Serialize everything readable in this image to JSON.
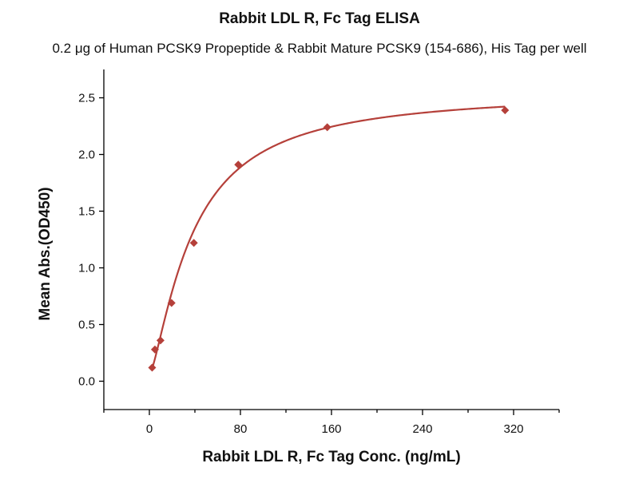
{
  "chart_data": {
    "type": "scatter",
    "title": "Rabbit LDL R, Fc Tag ELISA",
    "subtitle": "0.2 μg of Human PCSK9 Propeptide & Rabbit Mature PCSK9 (154-686), His Tag per well",
    "xlabel": "Rabbit LDL R, Fc Tag Conc. (ng/mL)",
    "ylabel": "Mean Abs.(OD450)",
    "xlim": [
      -40,
      360
    ],
    "ylim": [
      -0.25,
      2.75
    ],
    "xticks": [
      0,
      80,
      160,
      240,
      320
    ],
    "xtick_labels": [
      "0",
      "80",
      "160",
      "240",
      "320"
    ],
    "yticks": [
      0.0,
      0.5,
      1.0,
      1.5,
      2.0,
      2.5
    ],
    "ytick_labels": [
      "0.0",
      "0.5",
      "1.0",
      "1.5",
      "2.0",
      "2.5"
    ],
    "grid": false,
    "series": [
      {
        "name": "Rabbit LDL R, Fc Tag",
        "marker": "diamond",
        "color": "#b5403a",
        "x": [
          2.44,
          4.88,
          9.77,
          19.5,
          39.1,
          78.1,
          156.3,
          312.5
        ],
        "y": [
          0.12,
          0.28,
          0.36,
          0.69,
          1.22,
          1.91,
          2.24,
          2.39
        ]
      }
    ],
    "fit": {
      "type": "4PL",
      "color": "#b5403a",
      "bottom": 0.05,
      "top": 2.56,
      "ec50": 38,
      "hill": 1.35
    }
  }
}
